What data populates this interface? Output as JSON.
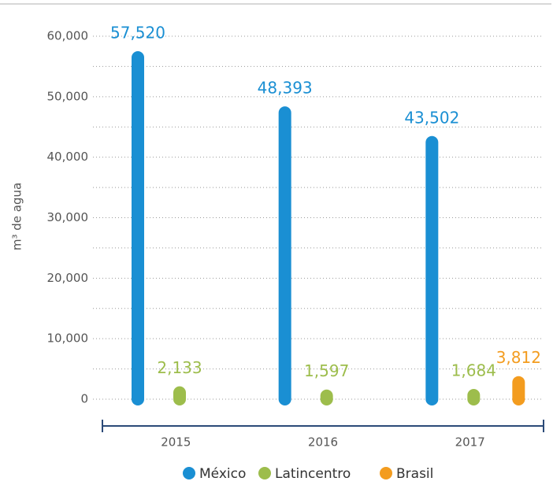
{
  "chart_data": {
    "type": "bar",
    "y_label": "m³ de agua",
    "categories": [
      "2015",
      "2016",
      "2017"
    ],
    "series": [
      {
        "name": "México",
        "color": "#1a8fd3",
        "values": [
          57520,
          48393,
          43502
        ],
        "value_labels": [
          "57,520",
          "48,393",
          "43,502"
        ]
      },
      {
        "name": "Latincentro",
        "color": "#9dbd4c",
        "values": [
          2133,
          1597,
          1684
        ],
        "value_labels": [
          "2,133",
          "1,597",
          "1,684"
        ]
      },
      {
        "name": "Brasil",
        "color": "#f39c1f",
        "values": [
          null,
          null,
          3812
        ],
        "value_labels": [
          null,
          null,
          "3,812"
        ]
      }
    ],
    "ylim": [
      0,
      60000
    ],
    "yticks": [
      0,
      {
        "value": 10000,
        "label": "10,000"
      },
      {
        "value": 20000,
        "label": "20,000"
      },
      {
        "value": 30000,
        "label": "30,000"
      },
      {
        "value": 40000,
        "label": "40,000"
      },
      {
        "value": 50000,
        "label": "50,000"
      },
      {
        "value": 60000,
        "label": "60,000"
      }
    ],
    "grid": true,
    "legend": "bottom"
  }
}
